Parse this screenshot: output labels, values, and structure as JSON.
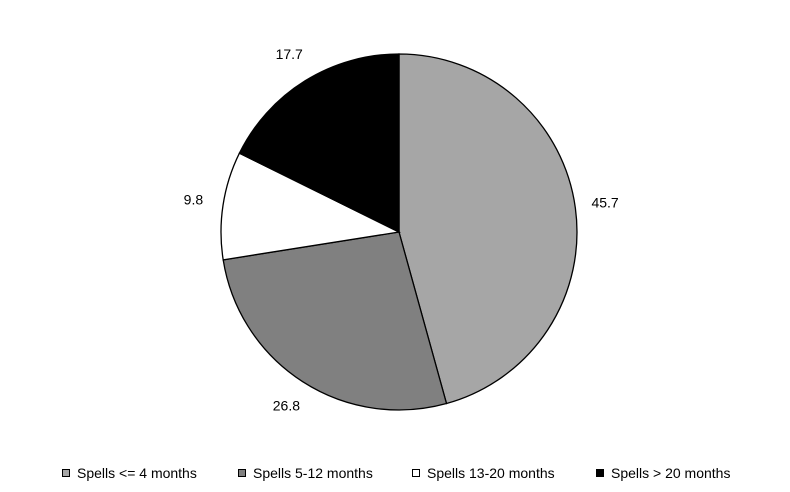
{
  "chart_data": {
    "type": "pie",
    "title": "",
    "slices": [
      {
        "label": "Spells <= 4 months",
        "value": 45.7,
        "value_label": "45.7",
        "color": "#a6a6a6"
      },
      {
        "label": "Spells 5-12 months",
        "value": 26.8,
        "value_label": "26.8",
        "color": "#808080"
      },
      {
        "label": "Spells 13-20 months",
        "value": 9.8,
        "value_label": "9.8",
        "color": "#ffffff"
      },
      {
        "label": "Spells > 20 months",
        "value": 17.7,
        "value_label": "17.7",
        "color": "#000000"
      }
    ],
    "start": "12 o'clock",
    "direction": "clockwise",
    "legend_position": "bottom"
  }
}
